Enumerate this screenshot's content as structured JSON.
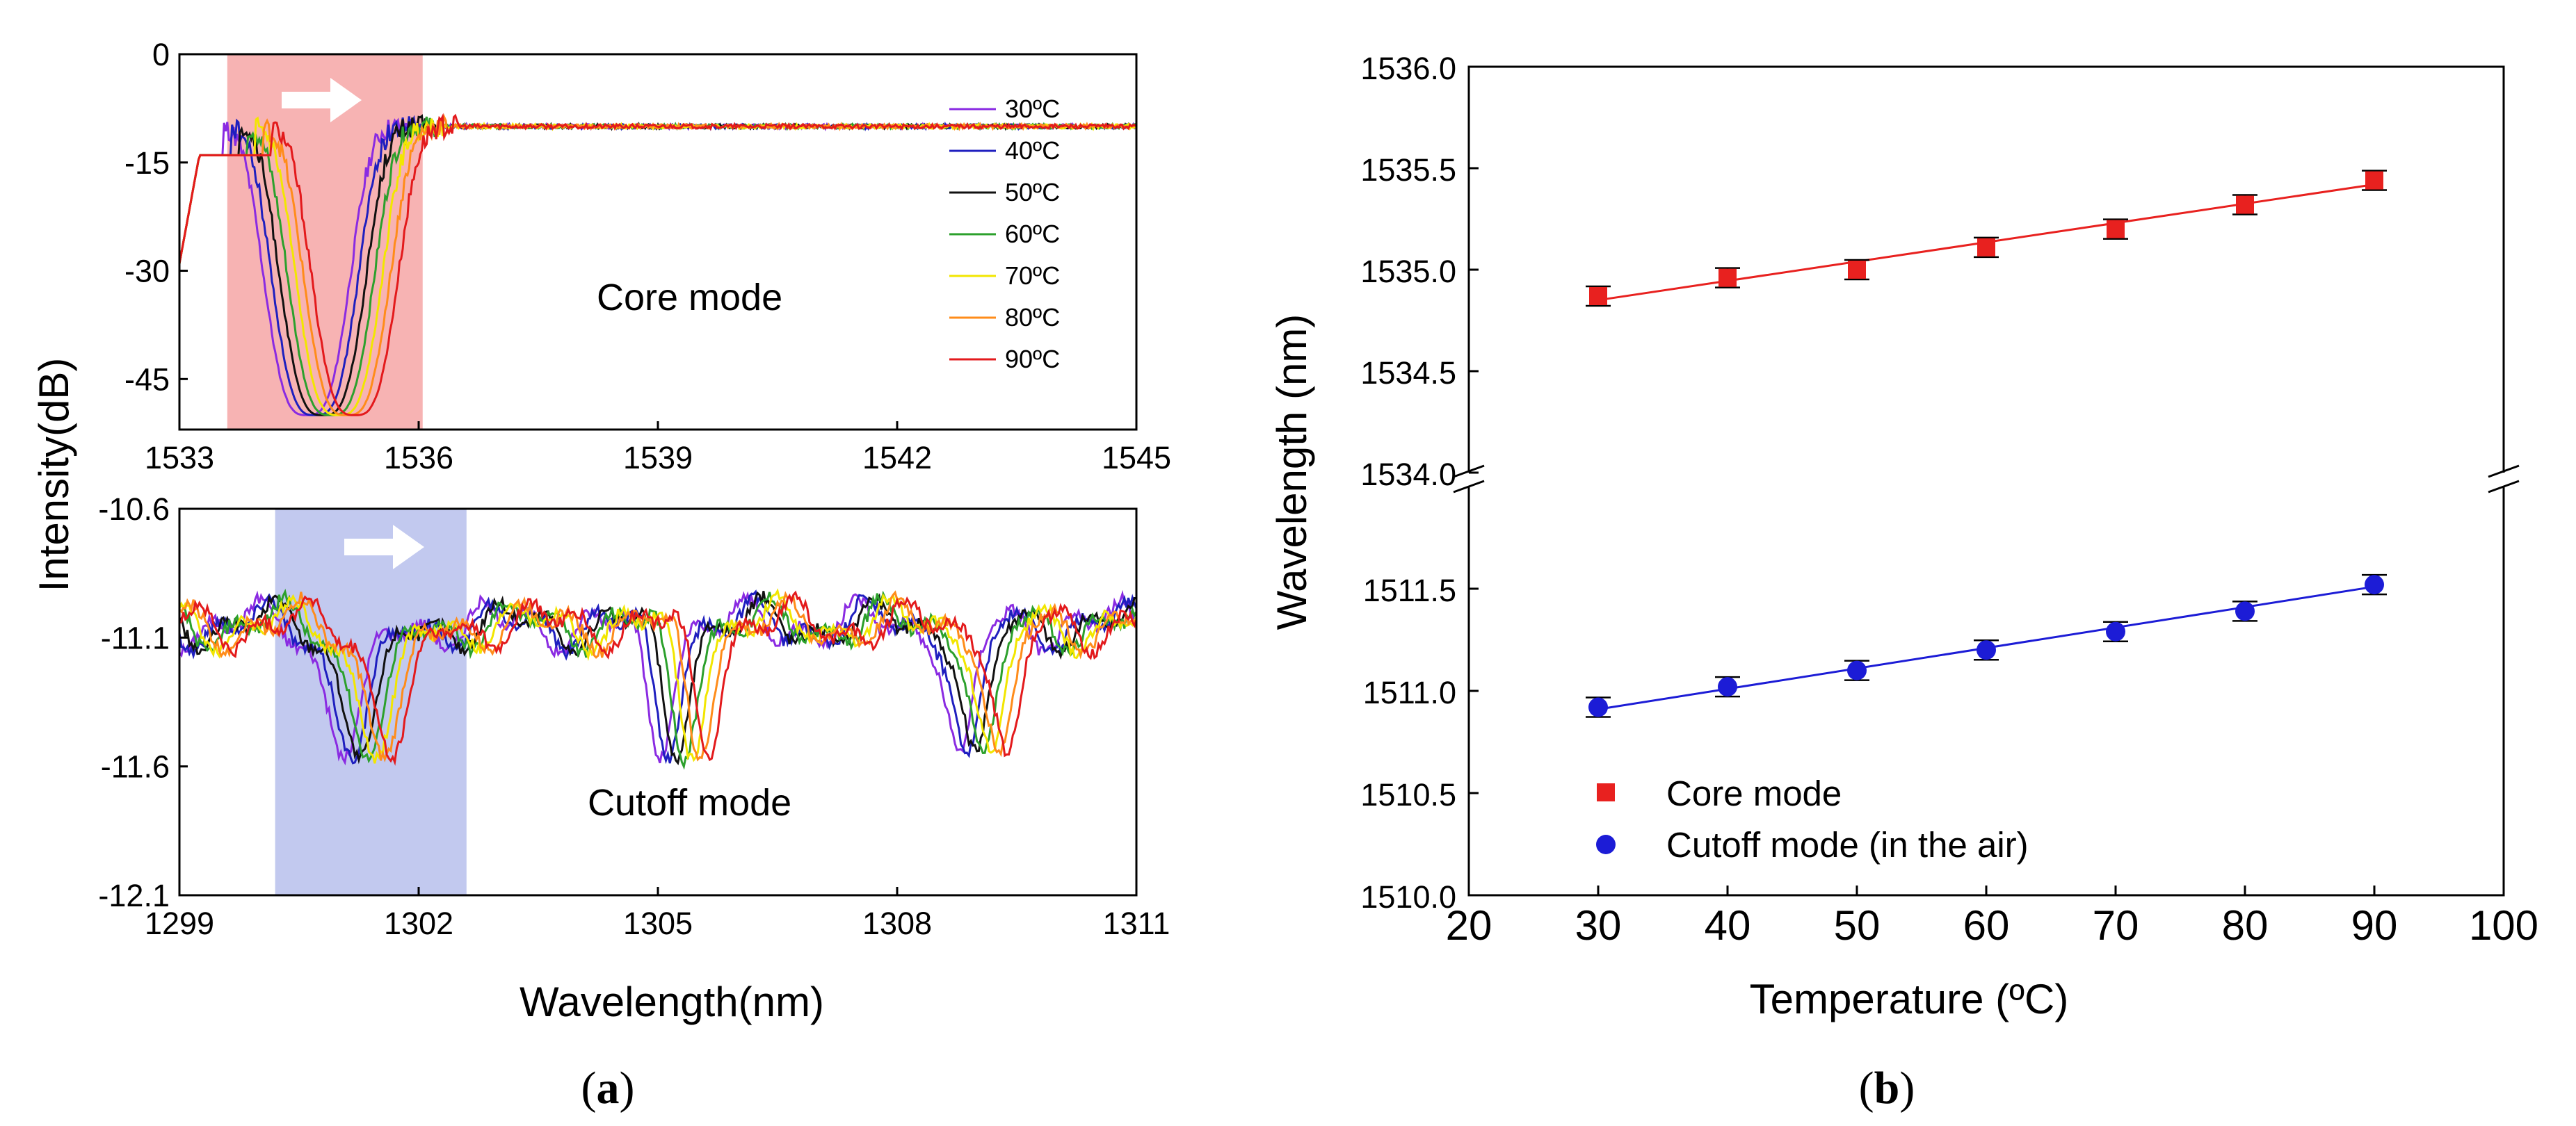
{
  "panels": [
    {
      "label_pre": "(",
      "label_letter": "a",
      "label_post": ")"
    },
    {
      "label_pre": "(",
      "label_letter": "b",
      "label_post": ")"
    }
  ],
  "chart_data": [
    {
      "type": "line",
      "panel": "a-top",
      "annotation": "Core mode",
      "xlim": [
        1533,
        1545
      ],
      "ylim": [
        -52,
        0
      ],
      "xticks": [
        1533,
        1536,
        1539,
        1542,
        1545
      ],
      "xtick_labels": [
        "1533",
        "1536",
        "1539",
        "1542",
        "1545"
      ],
      "yticks": [
        0,
        -15,
        -30,
        -45
      ],
      "ytick_labels": [
        "0",
        "-15",
        "-30",
        "-45"
      ],
      "highlight_band": {
        "x": [
          1533.6,
          1536.05
        ],
        "color": "#f7b3b3"
      },
      "arrow": "right",
      "baseline": -10,
      "dip_min": -50,
      "dip_center": [
        1534.6,
        1534.7,
        1534.8,
        1534.9,
        1535.0,
        1535.1,
        1535.2
      ],
      "legend": {
        "placement": "right",
        "entries": [
          "30ºC",
          "40ºC",
          "50ºC",
          "60ºC",
          "70ºC",
          "80ºC",
          "90ºC"
        ]
      },
      "series_colors": [
        "#8a2be2",
        "#1f1fbf",
        "#111111",
        "#2ca02c",
        "#f2e600",
        "#ff8c1a",
        "#e31a1c"
      ]
    },
    {
      "type": "line",
      "panel": "a-bottom",
      "annotation": "Cutoff mode",
      "xlim": [
        1299,
        1311
      ],
      "ylim": [
        -12.1,
        -10.6
      ],
      "xticks": [
        1299,
        1302,
        1305,
        1308,
        1311
      ],
      "xtick_labels": [
        "1299",
        "1302",
        "1305",
        "1308",
        "1311"
      ],
      "yticks": [
        -10.6,
        -11.1,
        -11.6,
        -12.1
      ],
      "ytick_labels": [
        "-10.6",
        "-11.1",
        "-11.6",
        "-12.1"
      ],
      "highlight_band": {
        "x": [
          1300.2,
          1302.6
        ],
        "color": "#c2c9ef"
      },
      "arrow": "right",
      "baseline": -11.05,
      "dips": [
        {
          "center": [
            1301.1,
            1301.2,
            1301.3,
            1301.4,
            1301.5,
            1301.6,
            1301.7
          ],
          "depth": -11.52,
          "width": 0.35
        },
        {
          "center": [
            1305.0,
            1305.1,
            1305.2,
            1305.3,
            1305.4,
            1305.5,
            1305.6
          ],
          "depth": -11.52,
          "width": 0.22
        },
        {
          "center": [
            1308.8,
            1308.9,
            1309.0,
            1309.1,
            1309.2,
            1309.3,
            1309.4
          ],
          "depth": -11.6,
          "width": 0.22
        }
      ],
      "series_colors": [
        "#8a2be2",
        "#1f1fbf",
        "#111111",
        "#2ca02c",
        "#f2e600",
        "#ff8c1a",
        "#e31a1c"
      ]
    },
    {
      "type": "scatter",
      "panel": "b",
      "xlabel": "Temperature (ºC)",
      "ylabel": "Wavelength (nm)",
      "xlim": [
        20,
        100
      ],
      "xticks": [
        20,
        30,
        40,
        50,
        60,
        70,
        80,
        90,
        100
      ],
      "xtick_labels": [
        "20",
        "30",
        "40",
        "50",
        "60",
        "70",
        "80",
        "90",
        "100"
      ],
      "upper_ylim": [
        1534.0,
        1536.0
      ],
      "upper_yticks": [
        1534.0,
        1534.5,
        1535.0,
        1535.5,
        1536.0
      ],
      "upper_ytick_labels": [
        "1534.0",
        "1534.5",
        "1535.0",
        "1535.5",
        "1536.0"
      ],
      "lower_ylim": [
        1510.0,
        1512.0
      ],
      "lower_yticks": [
        1510.0,
        1510.5,
        1511.0,
        1511.5
      ],
      "lower_ytick_labels": [
        "1510.0",
        "1510.5",
        "1511.0",
        "1511.5"
      ],
      "axis_break": true,
      "legend": {
        "placement": "bottom-left"
      },
      "series": [
        {
          "name": "Core mode",
          "marker": "square",
          "color": "#e8211f",
          "axis": "upper",
          "x": [
            30,
            40,
            50,
            60,
            70,
            80,
            90
          ],
          "y": [
            1534.87,
            1534.96,
            1535.0,
            1535.11,
            1535.2,
            1535.32,
            1535.44
          ],
          "fit": [
            1534.85,
            1535.42
          ]
        },
        {
          "name": "Cutoff mode (in the air)",
          "marker": "circle",
          "color": "#1c1cd6",
          "axis": "lower",
          "x": [
            30,
            40,
            50,
            60,
            70,
            80,
            90
          ],
          "y": [
            1510.92,
            1511.02,
            1511.1,
            1511.2,
            1511.29,
            1511.39,
            1511.52
          ],
          "fit": [
            1510.91,
            1511.51
          ]
        }
      ]
    }
  ],
  "shared": {
    "a_ylabel": "Intensity(dB)",
    "a_xlabel": "Wavelength(nm)"
  }
}
